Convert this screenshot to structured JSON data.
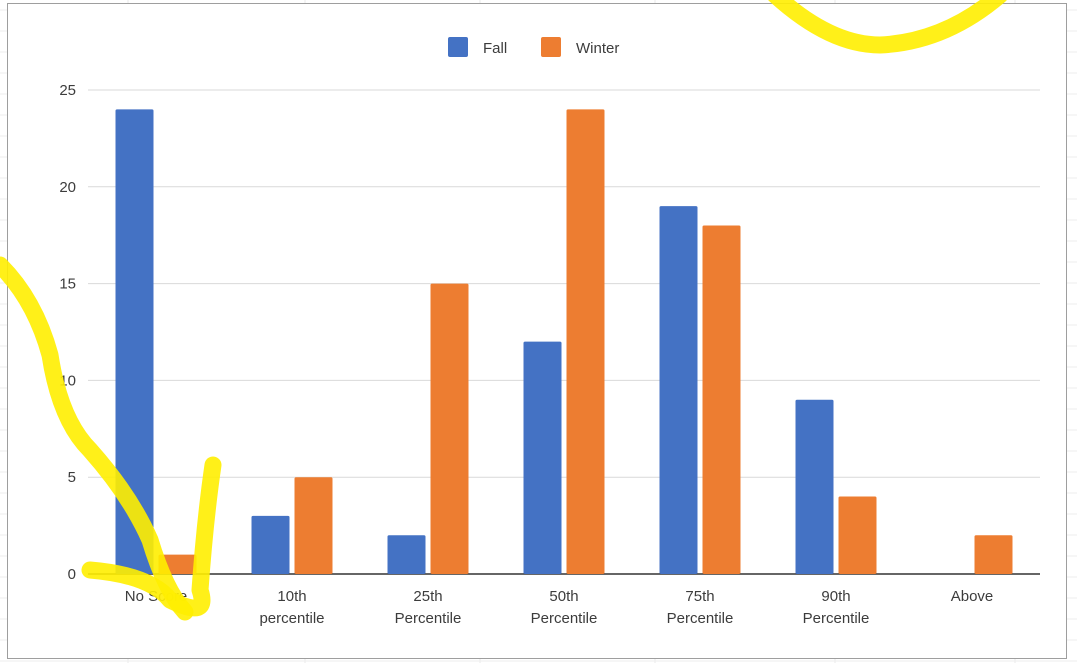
{
  "chart_data": {
    "type": "bar",
    "categories": [
      [
        "No Score"
      ],
      [
        "10th",
        "percentile"
      ],
      [
        "25th",
        "Percentile"
      ],
      [
        "50th",
        "Percentile"
      ],
      [
        "75th",
        "Percentile"
      ],
      [
        "90th",
        "Percentile"
      ],
      [
        "Above"
      ]
    ],
    "series": [
      {
        "name": "Fall",
        "values": [
          24,
          3,
          2,
          12,
          19,
          9,
          0
        ],
        "color": "#4472c4"
      },
      {
        "name": "Winter",
        "values": [
          1,
          5,
          15,
          24,
          18,
          4,
          2
        ],
        "color": "#ed7d31"
      }
    ],
    "ylim": [
      0,
      25
    ],
    "yticks": [
      0,
      5,
      10,
      15,
      20,
      25
    ],
    "grid": true,
    "legend_position": "top-center",
    "title": "",
    "xlabel": "",
    "ylabel": "",
    "annotation_color": "#ffee00"
  }
}
